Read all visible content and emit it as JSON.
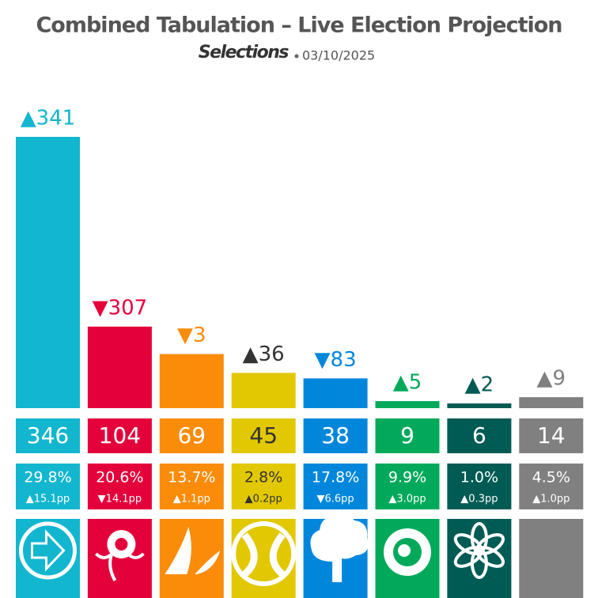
{
  "chart_data": {
    "type": "bar",
    "title": "Combined Tabulation – Live Election Projection",
    "brand": "Selections",
    "date": "03/10/2025",
    "values": [
      346,
      104,
      69,
      45,
      38,
      9,
      6,
      14
    ],
    "colors": [
      "#12b6cf",
      "#e4003b",
      "#fa8c0a",
      "#e2c800",
      "#0087dc",
      "#02a95b",
      "#005b54",
      "#808080"
    ],
    "label_colors": [
      "#12b6cf",
      "#e4003b",
      "#fa8c0a",
      "#333333",
      "#0087dc",
      "#02a95b",
      "#005b54",
      "#808080"
    ],
    "box_text_colors": [
      "#ffffff",
      "#ffffff",
      "#ffffff",
      "#333333",
      "#ffffff",
      "#ffffff",
      "#ffffff",
      "#ffffff"
    ],
    "seat_change": {
      "values": [
        341,
        -307,
        -3,
        36,
        -83,
        5,
        2,
        9
      ],
      "value_labels": [
        "▲341",
        "▼307",
        "▼3",
        "▲36",
        "▼83",
        "▲5",
        "▲2",
        "▲9"
      ]
    },
    "vote_share": {
      "values": [
        29.8,
        20.6,
        13.7,
        2.8,
        17.8,
        9.9,
        1.0,
        4.5
      ],
      "value_labels": [
        "29.8%",
        "20.6%",
        "13.7%",
        "2.8%",
        "17.8%",
        "9.9%",
        "1.0%",
        "4.5%"
      ]
    },
    "vote_change": {
      "values": [
        15.1,
        -14.1,
        1.1,
        0.2,
        -6.6,
        3.0,
        0.3,
        1.0
      ],
      "value_labels": [
        "▲15.1pp",
        "▼14.1pp",
        "▲1.1pp",
        "▲0.2pp",
        "▼6.6pp",
        "▲3.0pp",
        "▲0.3pp",
        "▲1.0pp"
      ]
    }
  }
}
